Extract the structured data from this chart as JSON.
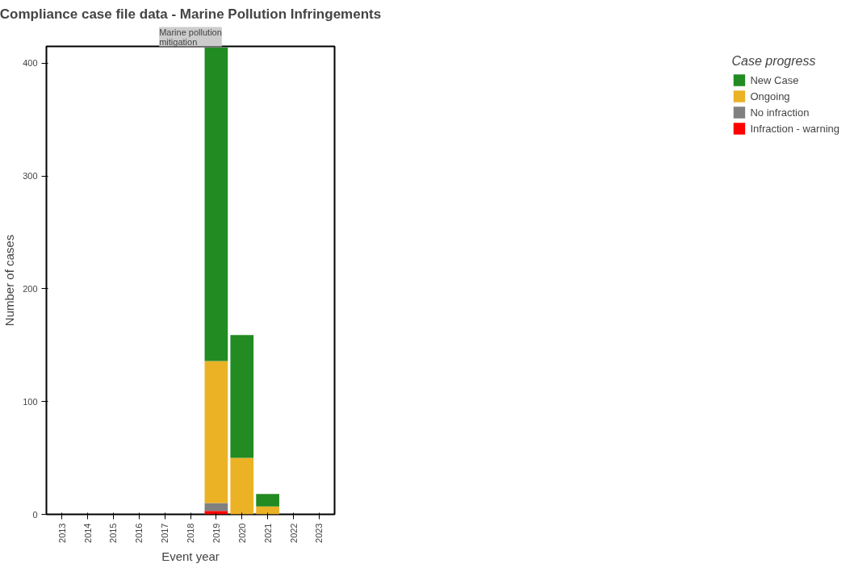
{
  "chart_data": {
    "type": "bar",
    "title": "Compliance case file data - Marine Pollution Infringements",
    "annotations": [
      "Marine pollution\nmitigation"
    ],
    "xlabel": "Event year",
    "ylabel": "Number of cases",
    "legend_title": "Case progress",
    "categories": [
      "2013",
      "2014",
      "2015",
      "2016",
      "2017",
      "2018",
      "2019",
      "2020",
      "2021",
      "2022",
      "2023"
    ],
    "stacked": true,
    "series": [
      {
        "name": "Infraction - warning",
        "color": "#ff0000",
        "values": [
          null,
          null,
          null,
          null,
          null,
          null,
          3,
          null,
          null,
          null,
          null
        ]
      },
      {
        "name": "No infraction",
        "color": "#808080",
        "values": [
          null,
          null,
          null,
          null,
          null,
          null,
          7,
          null,
          null,
          null,
          null
        ]
      },
      {
        "name": "Ongoing",
        "color": "#ebb225",
        "values": [
          null,
          null,
          null,
          null,
          null,
          null,
          126,
          50,
          7,
          null,
          null
        ]
      },
      {
        "name": "New Case",
        "color": "#228b22",
        "values": [
          null,
          null,
          null,
          null,
          null,
          null,
          278,
          109,
          11,
          null,
          null
        ]
      }
    ],
    "ylim": [
      0,
      415
    ],
    "yticks": [
      0,
      100,
      200,
      300,
      400
    ],
    "grid": false,
    "legend": "right"
  }
}
